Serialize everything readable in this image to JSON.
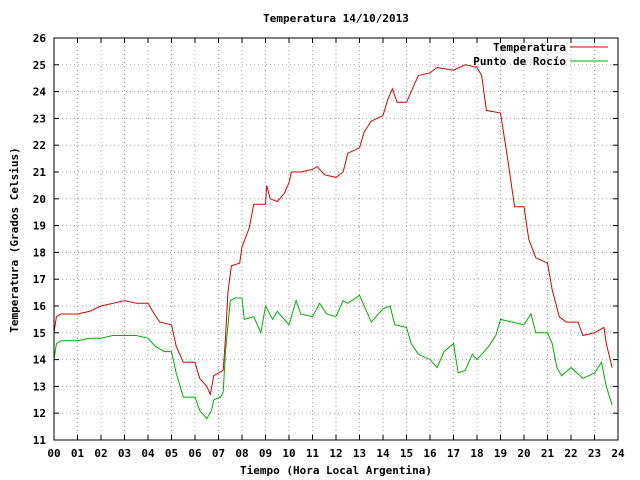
{
  "chart_data": {
    "type": "line",
    "title": "Temperatura 14/10/2013",
    "xlabel": "Tiempo (Hora Local Argentina)",
    "ylabel": "Temperatura (Grados Celsius)",
    "xlim": [
      0,
      24
    ],
    "ylim": [
      11,
      26
    ],
    "x_ticks": [
      "00",
      "01",
      "02",
      "03",
      "04",
      "05",
      "06",
      "07",
      "08",
      "09",
      "10",
      "11",
      "12",
      "13",
      "14",
      "15",
      "16",
      "17",
      "18",
      "19",
      "20",
      "21",
      "22",
      "23",
      "24"
    ],
    "y_ticks": [
      "11",
      "12",
      "13",
      "14",
      "15",
      "16",
      "17",
      "18",
      "19",
      "20",
      "21",
      "22",
      "23",
      "24",
      "25",
      "26"
    ],
    "grid": true,
    "legend_position": "top-right",
    "series": [
      {
        "name": "Temperatura",
        "color": "#e00000",
        "points": [
          [
            0.0,
            15.0
          ],
          [
            0.1,
            15.6
          ],
          [
            0.3,
            15.7
          ],
          [
            1.0,
            15.7
          ],
          [
            1.5,
            15.8
          ],
          [
            2.0,
            16.0
          ],
          [
            2.5,
            16.1
          ],
          [
            3.0,
            16.2
          ],
          [
            3.5,
            16.1
          ],
          [
            4.0,
            16.1
          ],
          [
            4.2,
            15.8
          ],
          [
            4.5,
            15.4
          ],
          [
            5.0,
            15.3
          ],
          [
            5.2,
            14.5
          ],
          [
            5.5,
            13.9
          ],
          [
            6.0,
            13.9
          ],
          [
            6.2,
            13.3
          ],
          [
            6.5,
            13.0
          ],
          [
            6.65,
            12.7
          ],
          [
            6.8,
            13.4
          ],
          [
            7.2,
            13.6
          ],
          [
            7.3,
            14.8
          ],
          [
            7.4,
            16.5
          ],
          [
            7.55,
            17.5
          ],
          [
            7.9,
            17.6
          ],
          [
            8.0,
            18.2
          ],
          [
            8.3,
            18.9
          ],
          [
            8.5,
            19.8
          ],
          [
            9.0,
            19.8
          ],
          [
            9.05,
            20.5
          ],
          [
            9.2,
            20.0
          ],
          [
            9.5,
            19.9
          ],
          [
            9.8,
            20.2
          ],
          [
            10.0,
            20.6
          ],
          [
            10.1,
            21.0
          ],
          [
            10.5,
            21.0
          ],
          [
            11.0,
            21.1
          ],
          [
            11.2,
            21.2
          ],
          [
            11.5,
            20.9
          ],
          [
            12.0,
            20.8
          ],
          [
            12.3,
            21.0
          ],
          [
            12.5,
            21.7
          ],
          [
            13.0,
            21.9
          ],
          [
            13.2,
            22.5
          ],
          [
            13.5,
            22.9
          ],
          [
            14.0,
            23.1
          ],
          [
            14.2,
            23.7
          ],
          [
            14.4,
            24.1
          ],
          [
            14.6,
            23.6
          ],
          [
            15.0,
            23.6
          ],
          [
            15.3,
            24.2
          ],
          [
            15.5,
            24.6
          ],
          [
            16.0,
            24.7
          ],
          [
            16.3,
            24.9
          ],
          [
            17.0,
            24.8
          ],
          [
            17.5,
            25.0
          ],
          [
            18.0,
            24.9
          ],
          [
            18.2,
            24.6
          ],
          [
            18.4,
            23.3
          ],
          [
            19.0,
            23.2
          ],
          [
            19.3,
            21.5
          ],
          [
            19.6,
            19.7
          ],
          [
            20.0,
            19.7
          ],
          [
            20.2,
            18.5
          ],
          [
            20.5,
            17.8
          ],
          [
            21.0,
            17.6
          ],
          [
            21.2,
            16.6
          ],
          [
            21.5,
            15.6
          ],
          [
            21.8,
            15.4
          ],
          [
            22.3,
            15.4
          ],
          [
            22.5,
            14.9
          ],
          [
            23.0,
            15.0
          ],
          [
            23.4,
            15.2
          ],
          [
            23.5,
            14.6
          ],
          [
            23.75,
            13.7
          ]
        ]
      },
      {
        "name": "Punto de Rocío",
        "color": "#00b000",
        "points": [
          [
            0.0,
            14.0
          ],
          [
            0.1,
            14.6
          ],
          [
            0.3,
            14.7
          ],
          [
            1.0,
            14.7
          ],
          [
            1.5,
            14.8
          ],
          [
            2.0,
            14.8
          ],
          [
            2.5,
            14.9
          ],
          [
            3.5,
            14.9
          ],
          [
            4.0,
            14.8
          ],
          [
            4.3,
            14.5
          ],
          [
            4.7,
            14.3
          ],
          [
            5.0,
            14.3
          ],
          [
            5.2,
            13.5
          ],
          [
            5.5,
            12.6
          ],
          [
            6.0,
            12.6
          ],
          [
            6.2,
            12.1
          ],
          [
            6.5,
            11.8
          ],
          [
            6.7,
            12.1
          ],
          [
            6.8,
            12.5
          ],
          [
            7.1,
            12.6
          ],
          [
            7.2,
            12.8
          ],
          [
            7.3,
            14.3
          ],
          [
            7.5,
            16.2
          ],
          [
            7.7,
            16.3
          ],
          [
            8.0,
            16.3
          ],
          [
            8.1,
            15.5
          ],
          [
            8.5,
            15.6
          ],
          [
            8.8,
            15.0
          ],
          [
            9.0,
            16.0
          ],
          [
            9.3,
            15.5
          ],
          [
            9.5,
            15.8
          ],
          [
            10.0,
            15.3
          ],
          [
            10.3,
            16.2
          ],
          [
            10.5,
            15.7
          ],
          [
            11.0,
            15.6
          ],
          [
            11.3,
            16.1
          ],
          [
            11.6,
            15.7
          ],
          [
            12.0,
            15.6
          ],
          [
            12.3,
            16.2
          ],
          [
            12.5,
            16.1
          ],
          [
            13.0,
            16.4
          ],
          [
            13.5,
            15.4
          ],
          [
            14.0,
            15.9
          ],
          [
            14.3,
            16.0
          ],
          [
            14.5,
            15.3
          ],
          [
            15.0,
            15.2
          ],
          [
            15.2,
            14.6
          ],
          [
            15.5,
            14.2
          ],
          [
            16.0,
            14.0
          ],
          [
            16.3,
            13.7
          ],
          [
            16.6,
            14.3
          ],
          [
            17.0,
            14.6
          ],
          [
            17.2,
            13.5
          ],
          [
            17.5,
            13.6
          ],
          [
            17.8,
            14.2
          ],
          [
            18.0,
            14.0
          ],
          [
            18.3,
            14.3
          ],
          [
            18.5,
            14.5
          ],
          [
            18.8,
            14.9
          ],
          [
            19.0,
            15.5
          ],
          [
            19.5,
            15.4
          ],
          [
            20.0,
            15.3
          ],
          [
            20.3,
            15.7
          ],
          [
            20.5,
            15.0
          ],
          [
            21.0,
            15.0
          ],
          [
            21.2,
            14.6
          ],
          [
            21.4,
            13.7
          ],
          [
            21.6,
            13.4
          ],
          [
            22.0,
            13.7
          ],
          [
            22.5,
            13.3
          ],
          [
            23.0,
            13.5
          ],
          [
            23.3,
            13.9
          ],
          [
            23.5,
            13.0
          ],
          [
            23.75,
            12.3
          ]
        ]
      }
    ]
  }
}
